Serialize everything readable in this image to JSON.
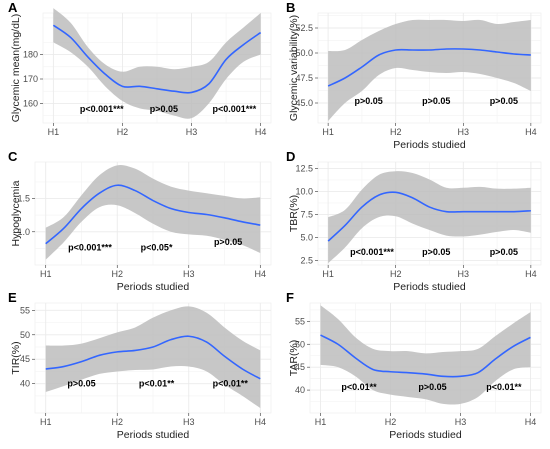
{
  "figure": {
    "background": "#ffffff"
  },
  "style": {
    "panel_bg": "#ffffff",
    "grid_major": "#ebebeb",
    "grid_minor": "#f4f4f4",
    "ribbon": "#bdbdbd",
    "line": "#3366ff",
    "axis_text": "#4d4d4d"
  },
  "chart_data": [
    {
      "letter": "A",
      "type": "line",
      "xlabel": "",
      "ylabel": "Glycemic mean(mg/dL)",
      "categories": [
        "H1",
        "H2",
        "H3",
        "H4"
      ],
      "ylim": [
        152,
        197
      ],
      "yticks": [
        160,
        170,
        180
      ],
      "grid": true,
      "ribbon": true,
      "x": [
        1,
        1.25,
        1.5,
        1.75,
        2,
        2.25,
        2.5,
        2.75,
        3,
        3.25,
        3.5,
        3.75,
        4
      ],
      "y": [
        192,
        187,
        179,
        172,
        167,
        167,
        166,
        165,
        164.5,
        168,
        178,
        184,
        189
      ],
      "lower": [
        185,
        181,
        175,
        167,
        161,
        158,
        157,
        155,
        154,
        160,
        170,
        177,
        180
      ],
      "upper": [
        199,
        193,
        183,
        176,
        173,
        175,
        175,
        174,
        175,
        177,
        185,
        191,
        197
      ],
      "annotations": [
        {
          "x": 1.7,
          "y": 156.5,
          "label": "p<0.001***"
        },
        {
          "x": 2.6,
          "y": 156.5,
          "label": "p>0.05"
        },
        {
          "x": 3.62,
          "y": 156.5,
          "label": "p<0.001***"
        }
      ]
    },
    {
      "letter": "B",
      "type": "line",
      "xlabel": "Periods studied",
      "ylabel": "Glycemic variability(%)",
      "categories": [
        "H1",
        "H2",
        "H3",
        "H4"
      ],
      "ylim": [
        43,
        54
      ],
      "yticks": [
        45.0,
        47.5,
        50.0,
        52.5
      ],
      "grid": true,
      "ribbon": true,
      "x": [
        1,
        1.25,
        1.5,
        1.75,
        2,
        2.25,
        2.5,
        2.75,
        3,
        3.25,
        3.5,
        3.75,
        4
      ],
      "y": [
        46.7,
        47.5,
        48.6,
        49.8,
        50.3,
        50.3,
        50.3,
        50.4,
        50.4,
        50.3,
        50.1,
        49.9,
        49.8
      ],
      "lower": [
        43.2,
        45.0,
        46.2,
        47.8,
        48.5,
        48.3,
        48.1,
        48.0,
        48.1,
        47.9,
        47.5,
        47.0,
        46.2
      ],
      "upper": [
        50.2,
        50.3,
        51.3,
        52.2,
        52.9,
        53.3,
        53.3,
        53.3,
        53.2,
        53.3,
        52.9,
        53.1,
        53.3
      ],
      "annotations": [
        {
          "x": 1.6,
          "y": 44.9,
          "label": "p>0.05"
        },
        {
          "x": 2.6,
          "y": 44.9,
          "label": "p>0.05"
        },
        {
          "x": 3.6,
          "y": 44.9,
          "label": "p>0.05"
        }
      ]
    },
    {
      "letter": "C",
      "type": "line",
      "xlabel": "Periods studied",
      "ylabel": "Hypoglycemia",
      "categories": [
        "H1",
        "H2",
        "H3",
        "H4"
      ],
      "ylim": [
        0.5,
        2.05
      ],
      "yticks": [
        1.0,
        1.5
      ],
      "grid": true,
      "ribbon": true,
      "x": [
        1,
        1.25,
        1.5,
        1.75,
        2,
        2.25,
        2.5,
        2.75,
        3,
        3.25,
        3.5,
        3.75,
        4
      ],
      "y": [
        0.82,
        1.05,
        1.35,
        1.58,
        1.7,
        1.62,
        1.47,
        1.35,
        1.29,
        1.26,
        1.21,
        1.15,
        1.1
      ],
      "lower": [
        0.58,
        0.84,
        1.15,
        1.37,
        1.4,
        1.28,
        1.12,
        1.0,
        0.96,
        0.94,
        0.88,
        0.8,
        0.68
      ],
      "upper": [
        1.06,
        1.22,
        1.55,
        1.85,
        2.0,
        1.95,
        1.8,
        1.68,
        1.62,
        1.58,
        1.54,
        1.5,
        1.52
      ],
      "annotations": [
        {
          "x": 1.62,
          "y": 0.72,
          "label": "p<0.001***"
        },
        {
          "x": 2.55,
          "y": 0.72,
          "label": "p<0.05*"
        },
        {
          "x": 3.55,
          "y": 0.8,
          "label": "p>0.05"
        }
      ]
    },
    {
      "letter": "D",
      "type": "line",
      "xlabel": "Periods studied",
      "ylabel": "TBR(%)",
      "categories": [
        "H1",
        "H2",
        "H3",
        "H4"
      ],
      "ylim": [
        2.0,
        13.2
      ],
      "yticks": [
        2.5,
        5.0,
        7.5,
        10.0,
        12.5
      ],
      "grid": true,
      "ribbon": true,
      "x": [
        1,
        1.25,
        1.5,
        1.75,
        2,
        2.25,
        2.5,
        2.75,
        3,
        3.25,
        3.5,
        3.75,
        4
      ],
      "y": [
        4.6,
        6.3,
        8.3,
        9.6,
        9.9,
        9.3,
        8.3,
        7.8,
        7.8,
        7.8,
        7.8,
        7.8,
        7.9
      ],
      "lower": [
        2.2,
        3.9,
        6.0,
        7.2,
        7.3,
        6.5,
        5.8,
        5.2,
        5.1,
        5.3,
        5.6,
        5.8,
        5.5
      ],
      "upper": [
        7.2,
        8.0,
        10.2,
        11.8,
        12.2,
        12.0,
        11.3,
        10.4,
        10.4,
        10.5,
        10.3,
        10.3,
        10.4
      ],
      "annotations": [
        {
          "x": 1.65,
          "y": 3.1,
          "label": "p<0.001***"
        },
        {
          "x": 2.6,
          "y": 3.1,
          "label": "p>0.05"
        },
        {
          "x": 3.6,
          "y": 3.1,
          "label": "p>0.05"
        }
      ]
    },
    {
      "letter": "E",
      "type": "line",
      "xlabel": "Periods studied",
      "ylabel": "TIR(%)",
      "categories": [
        "H1",
        "H2",
        "H3",
        "H4"
      ],
      "ylim": [
        34,
        56.5
      ],
      "yticks": [
        40,
        45,
        50,
        55
      ],
      "grid": true,
      "ribbon": true,
      "x": [
        1,
        1.25,
        1.5,
        1.75,
        2,
        2.25,
        2.5,
        2.75,
        3,
        3.25,
        3.5,
        3.75,
        4
      ],
      "y": [
        43.0,
        43.5,
        44.5,
        45.8,
        46.5,
        46.8,
        47.5,
        49.0,
        49.7,
        48.5,
        45.6,
        43.0,
        41.0
      ],
      "lower": [
        38.3,
        39.5,
        40.8,
        42.0,
        42.5,
        42.8,
        42.9,
        43.5,
        43.5,
        42.5,
        39.8,
        37.5,
        35.0
      ],
      "upper": [
        47.8,
        47.8,
        48.2,
        49.3,
        50.5,
        51.5,
        53.5,
        55.0,
        55.8,
        54.5,
        51.5,
        48.8,
        46.8
      ],
      "annotations": [
        {
          "x": 1.5,
          "y": 39.4,
          "label": "p>0.05"
        },
        {
          "x": 2.55,
          "y": 39.4,
          "label": "p<0.01**"
        },
        {
          "x": 3.58,
          "y": 39.4,
          "label": "p<0.01**"
        }
      ]
    },
    {
      "letter": "F",
      "type": "line",
      "xlabel": "Periods studied",
      "ylabel": "TAR(%)",
      "categories": [
        "H1",
        "H2",
        "H3",
        "H4"
      ],
      "ylim": [
        35,
        59
      ],
      "yticks": [
        40,
        45,
        50,
        55
      ],
      "grid": true,
      "ribbon": true,
      "x": [
        1,
        1.25,
        1.5,
        1.75,
        2,
        2.25,
        2.5,
        2.75,
        3,
        3.25,
        3.5,
        3.75,
        4
      ],
      "y": [
        52.0,
        50.0,
        47.0,
        44.5,
        44.0,
        43.8,
        43.5,
        43.0,
        43.0,
        43.8,
        46.8,
        49.5,
        51.5
      ],
      "lower": [
        45.5,
        45.0,
        43.0,
        40.0,
        39.0,
        38.5,
        38.0,
        37.0,
        37.0,
        38.5,
        42.0,
        44.5,
        45.0
      ],
      "upper": [
        58.5,
        55.5,
        51.5,
        49.0,
        48.5,
        48.5,
        48.0,
        48.3,
        48.5,
        49.0,
        51.8,
        54.5,
        57.0
      ],
      "annotations": [
        {
          "x": 1.55,
          "y": 40.0,
          "label": "p<0.01**"
        },
        {
          "x": 2.6,
          "y": 40.0,
          "label": "p>0.05"
        },
        {
          "x": 3.62,
          "y": 40.0,
          "label": "p<0.01**"
        }
      ]
    }
  ]
}
